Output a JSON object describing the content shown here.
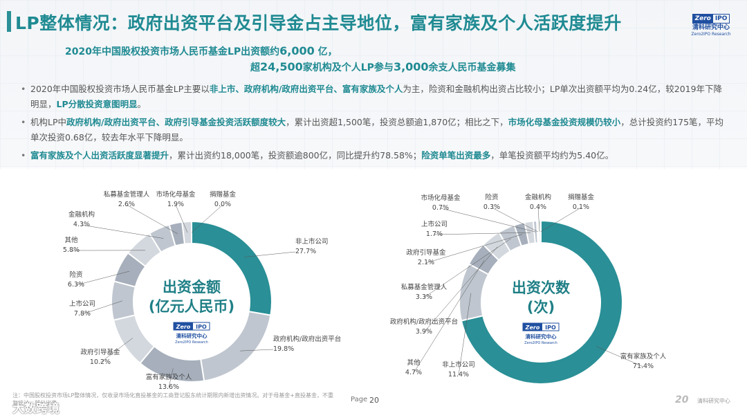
{
  "header": {
    "title": "LP整体情况：政府出资平台及引导金占主导地位，富有家族及个人活跃度提升",
    "logo": {
      "brand_left": "Zero",
      "brand_right": "IPO",
      "cn": "清科研究中心",
      "en": "Zero2IPO Research"
    }
  },
  "headline": {
    "line1_text": "2020年中国股权投资市场人民币基金LP出资额约",
    "line1_value": "6,000",
    "line1_unit": " 亿，",
    "line2_lead": "超",
    "line2_value1": "24,500",
    "line2_mid": "家机构及个人LP参与",
    "line2_value2": "3,000",
    "line2_tail": "余支人民币基金募集"
  },
  "bullets": [
    {
      "p1": "2020年中国股权投资市场人民币基金LP主要以",
      "h1": "非上市、政府机构/政府出资平台、富有家族及个人",
      "p2": "为主，险资和金融机构出资占比较小；LP单次出资额平均为0.24亿，较2019年下降明显，",
      "h2": "LP分散投资意图明显",
      "p3": "。"
    },
    {
      "p1": "机构LP中",
      "h1": "政府机构/政府出资平台、政府引导基金投资活跃额度较大",
      "p2": "，累计出资超1,500笔，投资总额逾1,870亿；相比之下，",
      "h2": "市场化母基金投资规模仍较小",
      "p3": "，总计投资约175笔，平均单次投资0.68亿，较去年水平下降明显。"
    },
    {
      "p1": "",
      "h1": "富有家族及个人出资活跃度显著提升",
      "p2": "，累计出资约18,000笔，投资额逾800亿，同比提升约78.58%；",
      "h2": "险资单笔出资最多",
      "p3": "，单笔投资额平均约为5.40亿。"
    }
  ],
  "colors": {
    "accent": "#2a8f96",
    "gray_dark": "#a6afbb",
    "gray_mid": "#bfc6cf",
    "gray_light": "#d3d8de"
  },
  "chart_data": [
    {
      "type": "pie",
      "center_label": [
        "出资金额",
        "(亿元人民币)"
      ],
      "unit": "%",
      "slices": [
        {
          "label": "非上市公司",
          "value": 27.7
        },
        {
          "label": "政府机构/政府出资平台",
          "value": 19.8
        },
        {
          "label": "富有家族及个人",
          "value": 13.6
        },
        {
          "label": "政府引导基金",
          "value": 10.2
        },
        {
          "label": "上市公司",
          "value": 7.8
        },
        {
          "label": "险资",
          "value": 6.3
        },
        {
          "label": "其他",
          "value": 5.8
        },
        {
          "label": "金融机构",
          "value": 4.3
        },
        {
          "label": "私募基金管理人",
          "value": 2.6
        },
        {
          "label": "市场化母基金",
          "value": 1.9
        },
        {
          "label": "捐赠基金",
          "value": 0.0
        }
      ]
    },
    {
      "type": "pie",
      "center_label": [
        "出资次数",
        "(次)"
      ],
      "unit": "%",
      "slices": [
        {
          "label": "富有家族及个人",
          "value": 71.4
        },
        {
          "label": "非上市公司",
          "value": 11.4
        },
        {
          "label": "其他",
          "value": 4.7
        },
        {
          "label": "政府机构/政府出资平台",
          "value": 3.9
        },
        {
          "label": "私募基金管理人",
          "value": 3.3
        },
        {
          "label": "政府引导基金",
          "value": 2.1
        },
        {
          "label": "上市公司",
          "value": 1.7
        },
        {
          "label": "市场化母基金",
          "value": 0.7
        },
        {
          "label": "险资",
          "value": 0.3
        },
        {
          "label": "金融机构",
          "value": 0.4
        },
        {
          "label": "捐赠基金",
          "value": 0.1
        }
      ]
    }
  ],
  "footer": {
    "note": "注：中国股权投资市场LP整体情况，仅收录市场化直投基金的工商登记股东统计期限内新增出资情况。对于母基金+直投基金，不重复统计，部分出资。",
    "watermark": "大数跨境",
    "page_label": "Page",
    "page_number": "20",
    "logo_mark": "20",
    "org": "清科研究中心"
  }
}
